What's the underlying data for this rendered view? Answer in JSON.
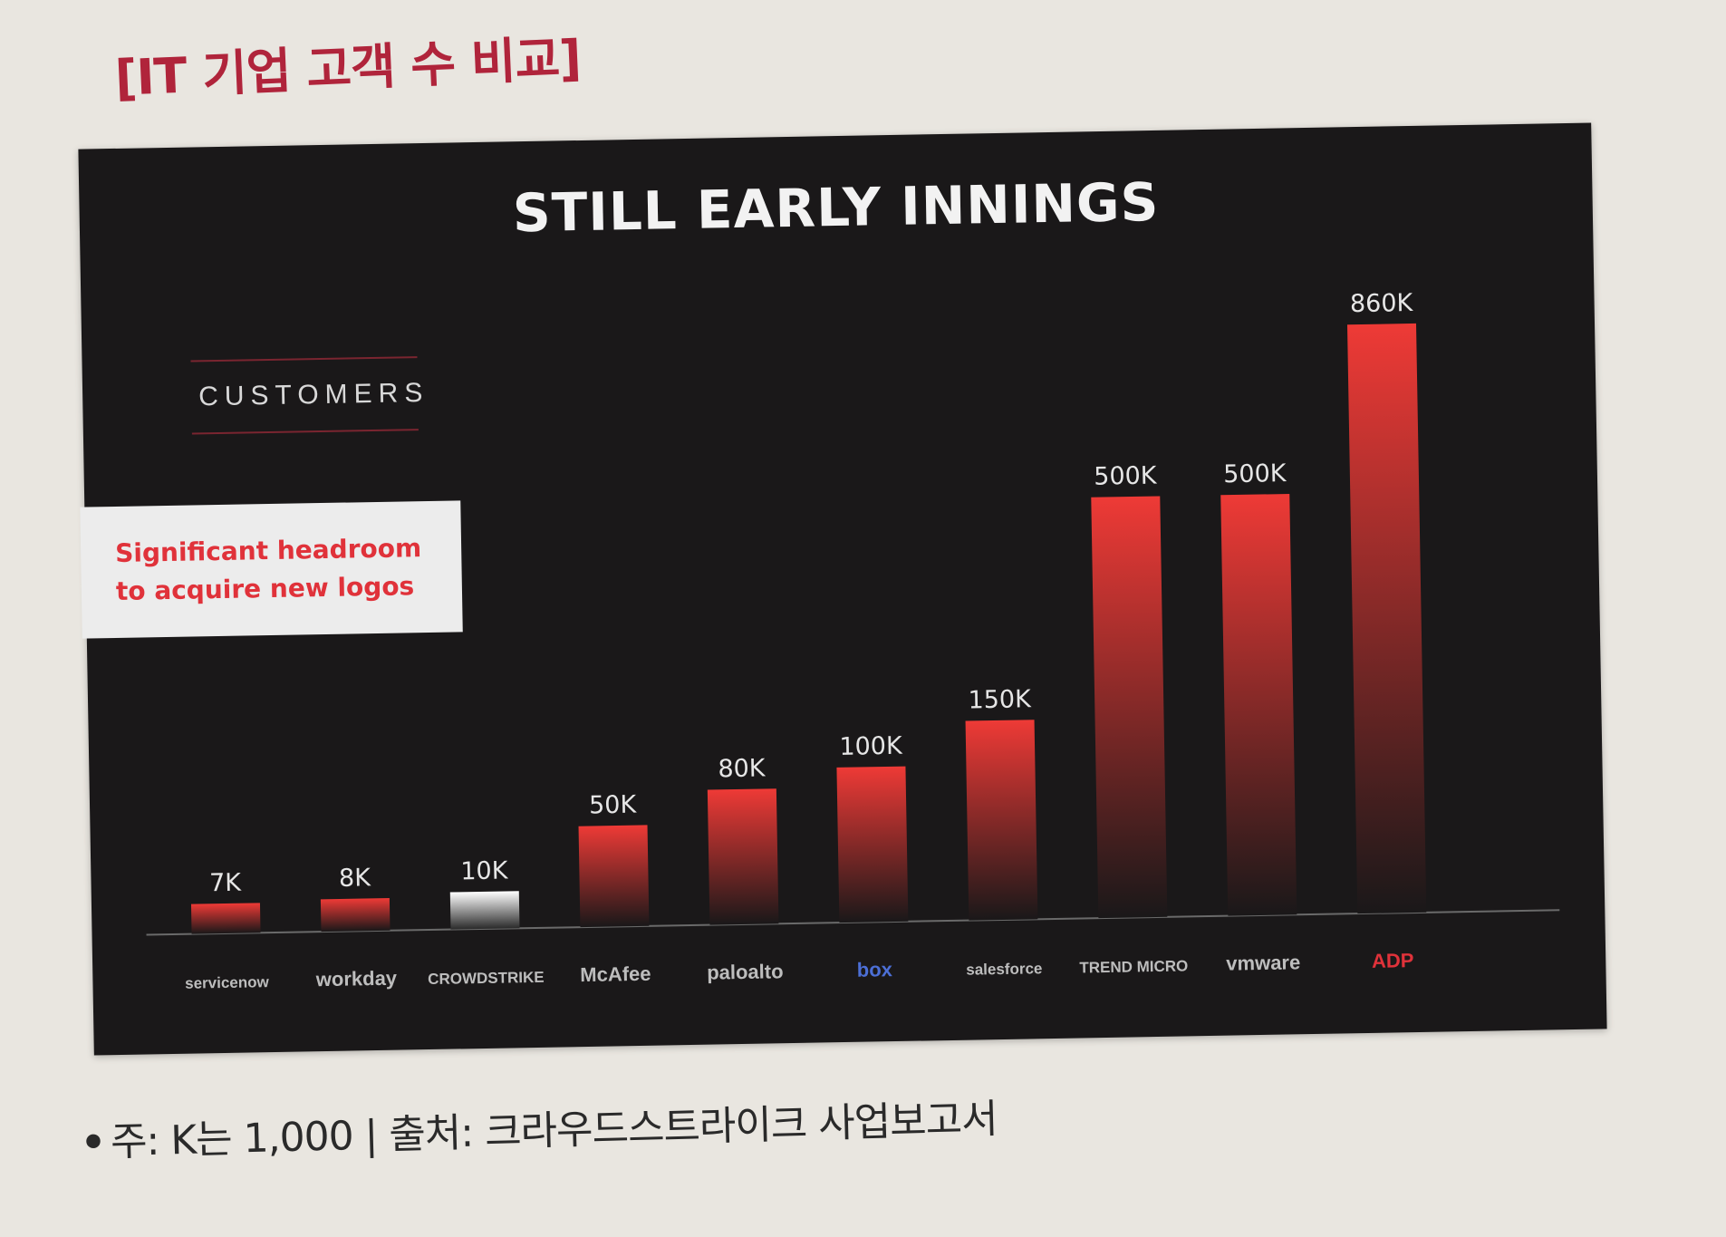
{
  "page_title": "[IT 기업 고객 수 비교]",
  "footnote": "주: K는 1,000 | 출처: 크라우드스트라이크 사업보고서",
  "colors": {
    "bar_top": "#ee3a36",
    "bar_bottom": "#1a1819",
    "highlight_top": "#ffffff",
    "highlight_bottom": "#2a2a2a",
    "background": "#1a1819",
    "title_red": "#b0243b"
  },
  "chart_data": {
    "type": "bar",
    "title": "STILL EARLY INNINGS",
    "ylabel": "CUSTOMERS",
    "annotation": "Significant headroom to acquire new logos",
    "annotation_lines": [
      "Significant headroom",
      "to acquire new logos"
    ],
    "categories": [
      "servicenow",
      "workday",
      "CROWDSTRIKE",
      "McAfee",
      "paloalto",
      "box",
      "salesforce",
      "TREND MICRO",
      "vmware",
      "ADP"
    ],
    "values": [
      7000,
      8000,
      10000,
      50000,
      80000,
      100000,
      150000,
      500000,
      500000,
      860000
    ],
    "labels": [
      "7K",
      "8K",
      "10K",
      "50K",
      "80K",
      "100K",
      "150K",
      "500K",
      "500K",
      "860K"
    ],
    "highlight": "CROWDSTRIKE",
    "ylim": [
      0,
      860000
    ],
    "axis_scale": "non-linear display",
    "grid": false,
    "legend": "none"
  }
}
